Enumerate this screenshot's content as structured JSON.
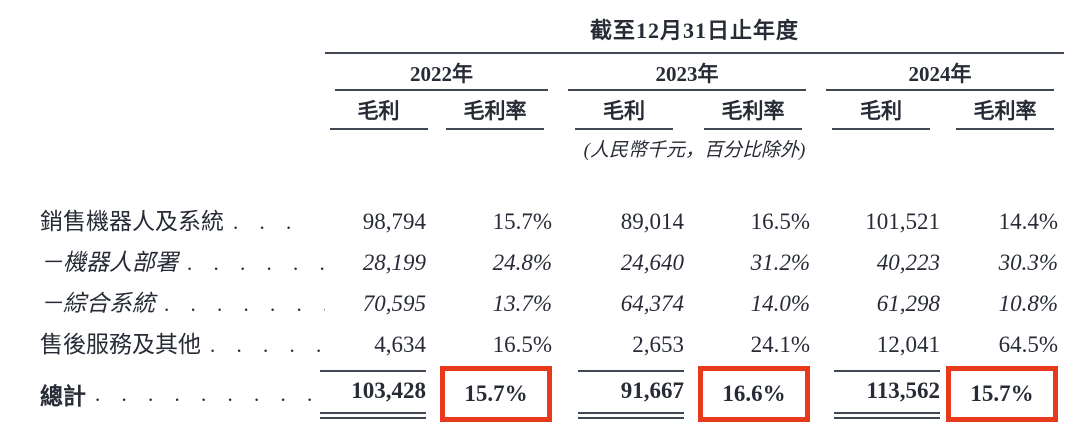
{
  "table": {
    "title": "截至12月31日止年度",
    "unit_note": "(人民幣千元，百分比除外)",
    "sub_headers": {
      "gross_profit": "毛利",
      "gross_margin": "毛利率"
    },
    "year_groups": [
      {
        "year": "2022年"
      },
      {
        "year": "2023年"
      },
      {
        "year": "2024年"
      }
    ],
    "rows": [
      {
        "label": "銷售機器人及系統",
        "leader": ". . .",
        "emphasis": false,
        "values": [
          "98,794",
          "15.7%",
          "89,014",
          "16.5%",
          "101,521",
          "14.4%"
        ]
      },
      {
        "label": "－機器人部署",
        "leader": ". . . . . . .",
        "emphasis": true,
        "values": [
          "28,199",
          "24.8%",
          "24,640",
          "31.2%",
          "40,223",
          "30.3%"
        ]
      },
      {
        "label": "－綜合系統",
        "leader": ". . . . . . . .",
        "emphasis": true,
        "values": [
          "70,595",
          "13.7%",
          "64,374",
          "14.0%",
          "61,298",
          "10.8%"
        ]
      },
      {
        "label": "售後服務及其他",
        "leader": ". . . . .",
        "emphasis": false,
        "values": [
          "4,634",
          "16.5%",
          "2,653",
          "24.1%",
          "12,041",
          "64.5%"
        ]
      }
    ],
    "total": {
      "label": "總計",
      "leader": ". . . . . . . . . . . . . .",
      "values": [
        "103,428",
        "15.7%",
        "91,667",
        "16.6%",
        "113,562",
        "15.7%"
      ],
      "highlighted_value_indexes": [
        1,
        3,
        5
      ]
    },
    "colors": {
      "text": "#272b36",
      "rule": "#3f4654",
      "highlight_box": "#e8391d"
    }
  }
}
